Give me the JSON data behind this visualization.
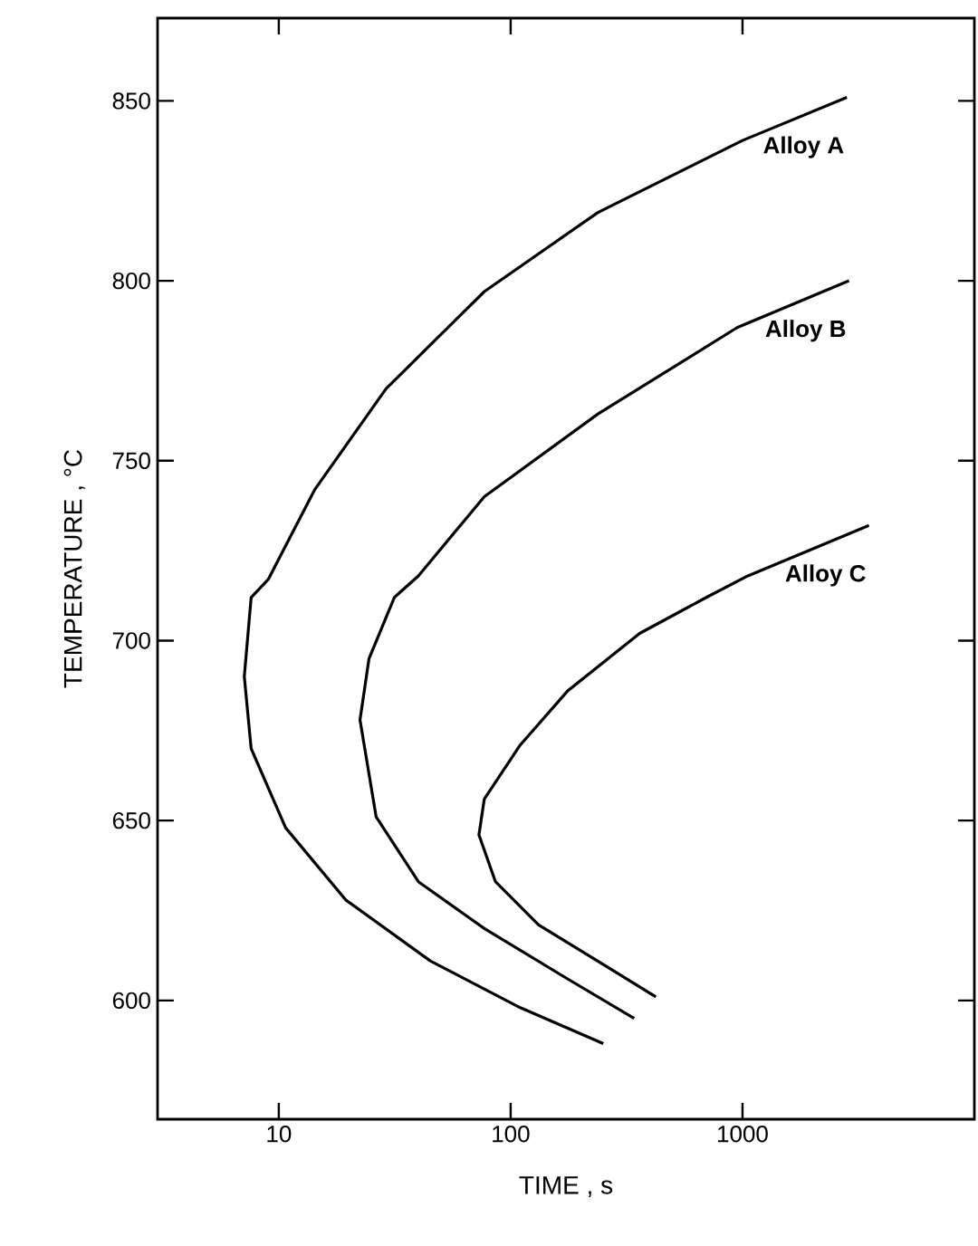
{
  "chart_data": {
    "type": "line",
    "xlabel": "TIME , s",
    "ylabel": "TEMPERATURE , °C",
    "log": "x",
    "xlim": [
      3,
      10000
    ],
    "xticks": [
      10,
      100,
      1000
    ],
    "ylim": [
      567,
      873
    ],
    "yticks": [
      600,
      650,
      700,
      750,
      800,
      850
    ],
    "grid": false,
    "legend": false,
    "marker": "none",
    "line_style": "solid",
    "series": [
      {
        "name": "Alloy A",
        "color": "#000000",
        "x": [
          2820,
          1000,
          238,
          77,
          29,
          14.3,
          9.0,
          7.6,
          7.1,
          7.6,
          10.7,
          19.4,
          45,
          110,
          251
        ],
        "values": [
          851,
          839,
          819,
          797,
          770,
          742,
          717,
          712,
          690,
          670,
          648,
          628,
          611,
          598,
          588
        ]
      },
      {
        "name": "Alloy B",
        "color": "#000000",
        "x": [
          2880,
          948,
          238,
          77,
          40,
          31.5,
          24.5,
          22.4,
          26.3,
          40,
          77,
          176,
          341
        ],
        "values": [
          800,
          787,
          763,
          740,
          718,
          712,
          695,
          678,
          651,
          633,
          620,
          606,
          595
        ]
      },
      {
        "name": "Alloy C",
        "color": "#000000",
        "x": [
          3510,
          1055,
          698,
          360,
          176,
          110,
          77,
          73,
          86,
          132,
          251,
          423
        ],
        "values": [
          732,
          718,
          712,
          702,
          686,
          671,
          656,
          646,
          633,
          621,
          610,
          601
        ]
      }
    ]
  }
}
